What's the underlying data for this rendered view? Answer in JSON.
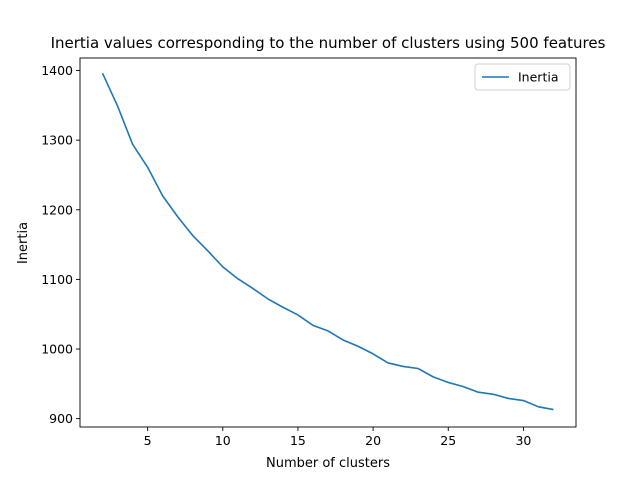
{
  "chart_data": {
    "type": "line",
    "title": "Inertia values corresponding to the number of clusters using 500 features",
    "xlabel": "Number of clusters",
    "ylabel": "Inertia",
    "xlim": [
      0.5,
      33.5
    ],
    "ylim": [
      888,
      1418
    ],
    "xticks": [
      5,
      10,
      15,
      20,
      25,
      30
    ],
    "yticks": [
      900,
      1000,
      1100,
      1200,
      1300,
      1400
    ],
    "grid": false,
    "legend_position": "upper-right",
    "color": "#1f77b4",
    "series": [
      {
        "name": "Inertia",
        "x": [
          2,
          3,
          4,
          5,
          6,
          7,
          8,
          9,
          10,
          11,
          12,
          13,
          14,
          15,
          16,
          17,
          18,
          19,
          20,
          21,
          22,
          23,
          24,
          25,
          26,
          27,
          28,
          29,
          30,
          31,
          32
        ],
        "y": [
          1396,
          1349,
          1294,
          1261,
          1220,
          1190,
          1163,
          1141,
          1118,
          1101,
          1087,
          1072,
          1060,
          1049,
          1034,
          1026,
          1013,
          1004,
          993,
          980,
          975,
          972,
          960,
          952,
          946,
          938,
          935,
          929,
          926,
          917,
          913
        ]
      }
    ]
  }
}
